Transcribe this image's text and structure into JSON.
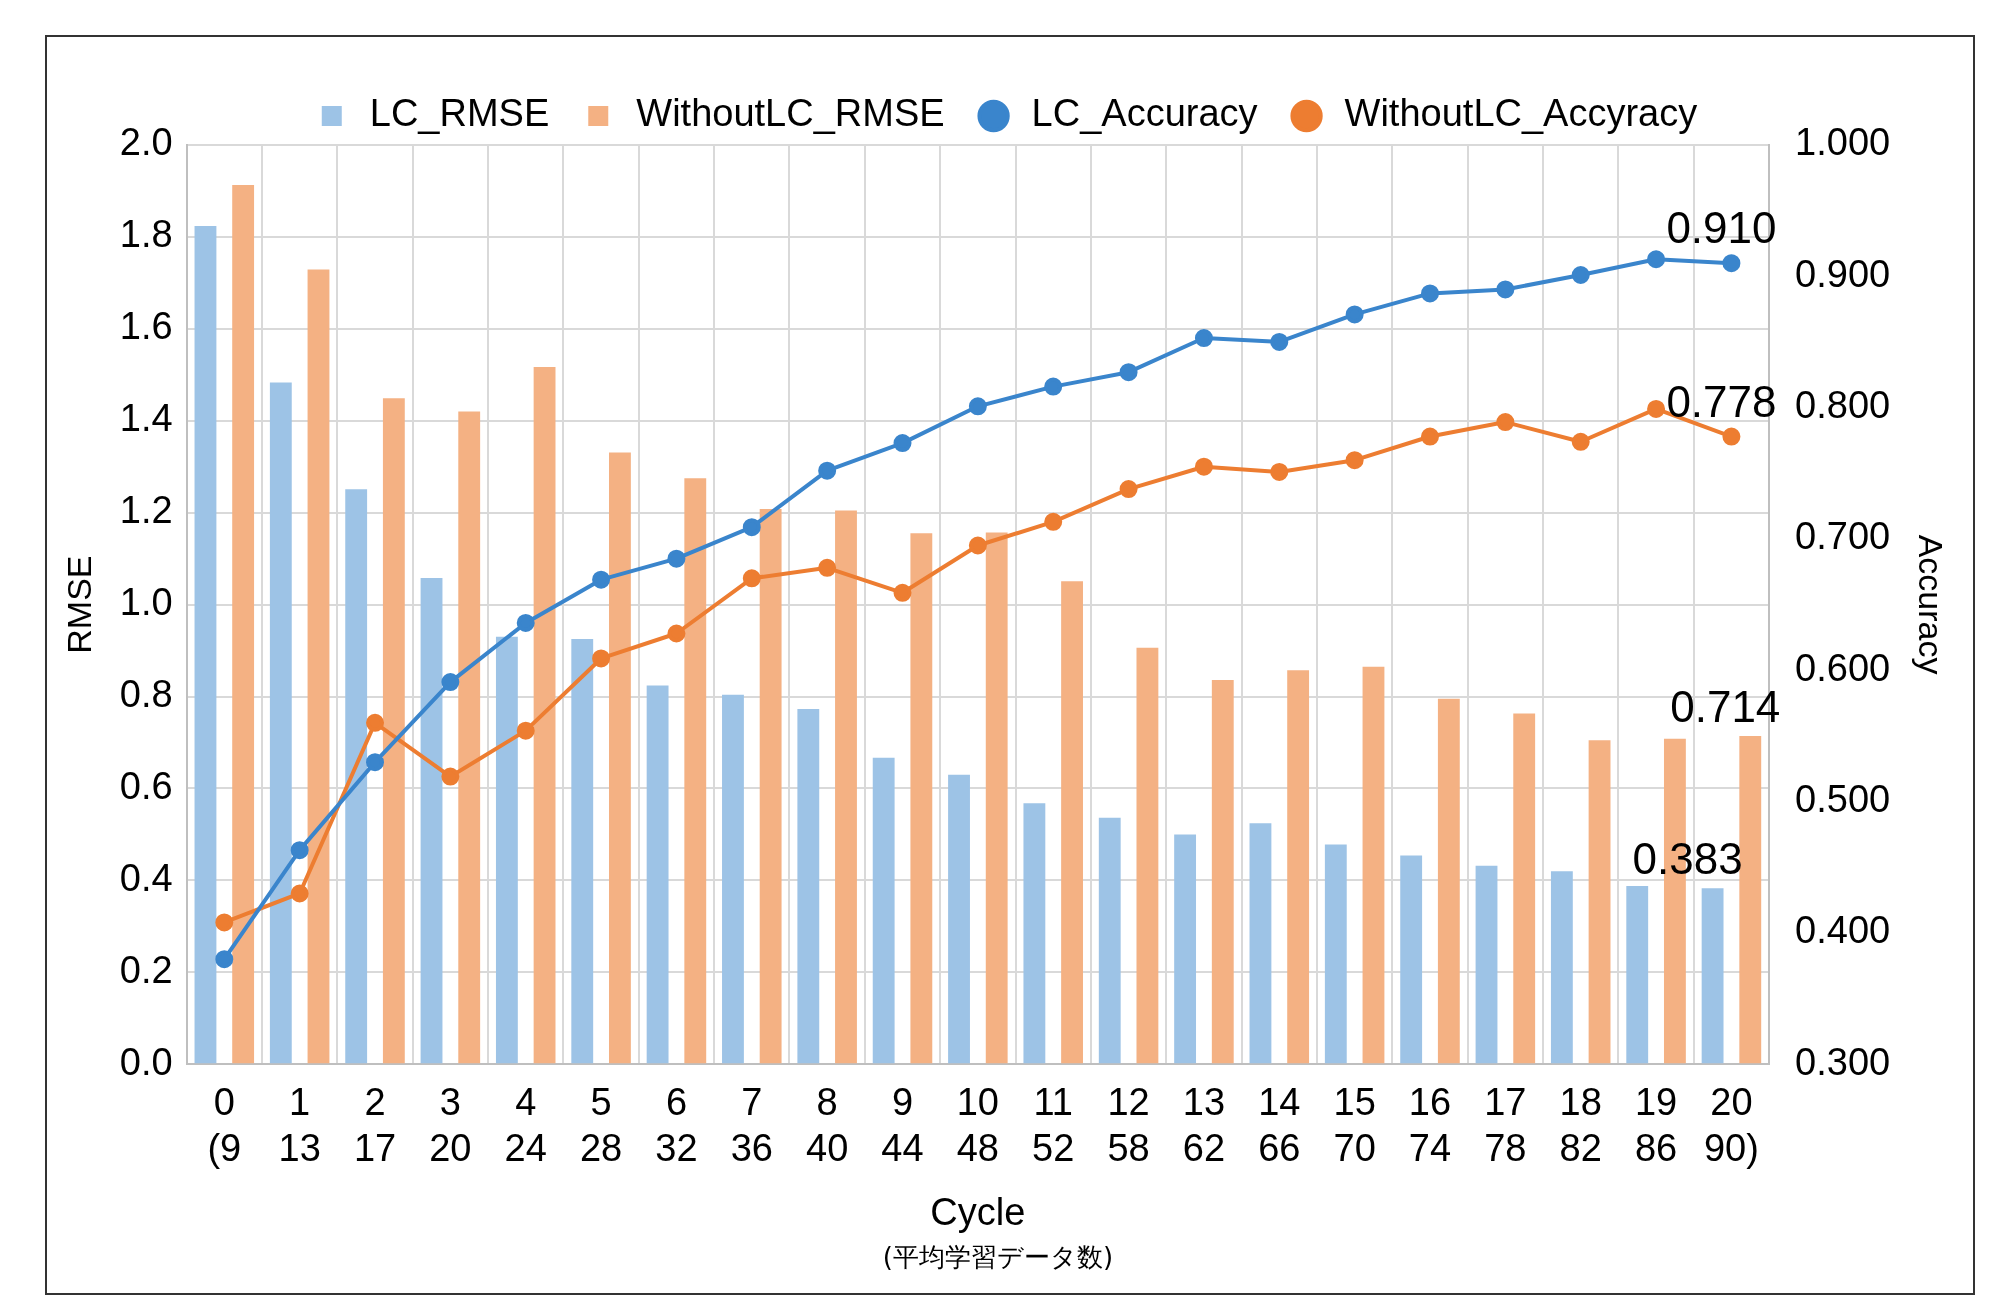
{
  "chart_data": {
    "type": "bar",
    "categories": [
      "0\n(9",
      "1\n13",
      "2\n17",
      "3\n20",
      "4\n24",
      "5\n28",
      "6\n32",
      "7\n36",
      "8\n40",
      "9\n44",
      "10\n48",
      "11\n52",
      "12\n58",
      "13\n62",
      "14\n66",
      "15\n70",
      "16\n74",
      "17\n78",
      "18\n82",
      "19\n86",
      "20\n90)"
    ],
    "xlabel": "Cycle",
    "ylabel": "RMSE",
    "y2label": "Accuracy",
    "annotations": [
      "(平均学習データ数)"
    ],
    "series": [
      {
        "name": "LC_RMSE",
        "color": "#9dc3e6",
        "values": [
          1.824,
          1.483,
          1.251,
          1.058,
          0.93,
          0.925,
          0.824,
          0.804,
          0.773,
          0.667,
          0.63,
          0.568,
          0.536,
          0.5,
          0.524,
          0.478,
          0.454,
          0.432,
          0.42,
          0.388,
          0.383
        ],
        "value_labels": [
          null,
          null,
          null,
          null,
          null,
          null,
          null,
          null,
          null,
          null,
          null,
          null,
          null,
          null,
          null,
          null,
          null,
          null,
          null,
          null,
          "0.383"
        ]
      },
      {
        "name": "WithoutLC_RMSE",
        "color": "#f4b183",
        "values": [
          1.913,
          1.729,
          1.449,
          1.42,
          1.517,
          1.331,
          1.275,
          1.208,
          1.205,
          1.155,
          1.157,
          1.051,
          0.906,
          0.836,
          0.857,
          0.865,
          0.795,
          0.763,
          0.705,
          0.708,
          0.714
        ],
        "value_labels": [
          null,
          null,
          null,
          null,
          null,
          null,
          null,
          null,
          null,
          null,
          null,
          null,
          null,
          null,
          null,
          null,
          null,
          null,
          null,
          null,
          "0.714"
        ]
      },
      {
        "name": "LC_Accuracy",
        "type": "line",
        "axis": "y2",
        "color": "#3a85cc",
        "values": [
          0.38,
          0.463,
          0.53,
          0.591,
          0.636,
          0.669,
          0.685,
          0.709,
          0.752,
          0.773,
          0.801,
          0.816,
          0.827,
          0.853,
          0.85,
          0.871,
          0.887,
          0.89,
          0.901,
          0.913,
          0.91
        ],
        "value_labels": [
          null,
          null,
          null,
          null,
          null,
          null,
          null,
          null,
          null,
          null,
          null,
          null,
          null,
          null,
          null,
          null,
          null,
          null,
          null,
          null,
          "0.910"
        ]
      },
      {
        "name": "WithoutLC_Accyracy",
        "type": "line",
        "axis": "y2",
        "color": "#ed7d31",
        "values": [
          0.408,
          0.43,
          0.56,
          0.519,
          0.554,
          0.609,
          0.628,
          0.67,
          0.678,
          0.659,
          0.695,
          0.713,
          0.738,
          0.755,
          0.751,
          0.76,
          0.778,
          0.789,
          0.774,
          0.799,
          0.778
        ],
        "value_labels": [
          null,
          null,
          null,
          null,
          null,
          null,
          null,
          null,
          null,
          null,
          null,
          null,
          null,
          null,
          null,
          null,
          null,
          null,
          null,
          null,
          "0.778"
        ]
      }
    ],
    "ylim": [
      0,
      2.0
    ],
    "yticks": [
      {
        "value": 0,
        "label": "0.0"
      },
      {
        "value": 0.2,
        "label": "0.2"
      },
      {
        "value": 0.4,
        "label": "0.4"
      },
      {
        "value": 0.6,
        "label": "0.6"
      },
      {
        "value": 0.8,
        "label": "0.8"
      },
      {
        "value": 1.0,
        "label": "1.0"
      },
      {
        "value": 1.2,
        "label": "1.2"
      },
      {
        "value": 1.4,
        "label": "1.4"
      },
      {
        "value": 1.6,
        "label": "1.6"
      },
      {
        "value": 1.8,
        "label": "1.8"
      },
      {
        "value": 2.0,
        "label": "2.0"
      }
    ],
    "y2lim": [
      0.3,
      1.0
    ],
    "y2ticks": [
      {
        "value": 0.3,
        "label": "0.300"
      },
      {
        "value": 0.4,
        "label": "0.400"
      },
      {
        "value": 0.5,
        "label": "0.500"
      },
      {
        "value": 0.6,
        "label": "0.600"
      },
      {
        "value": 0.7,
        "label": "0.700"
      },
      {
        "value": 0.8,
        "label": "0.800"
      },
      {
        "value": 0.9,
        "label": "0.900"
      },
      {
        "value": 1.0,
        "label": "1.000"
      }
    ],
    "grid": true,
    "legend": "top",
    "marker": "circle",
    "line_style": "solid"
  }
}
